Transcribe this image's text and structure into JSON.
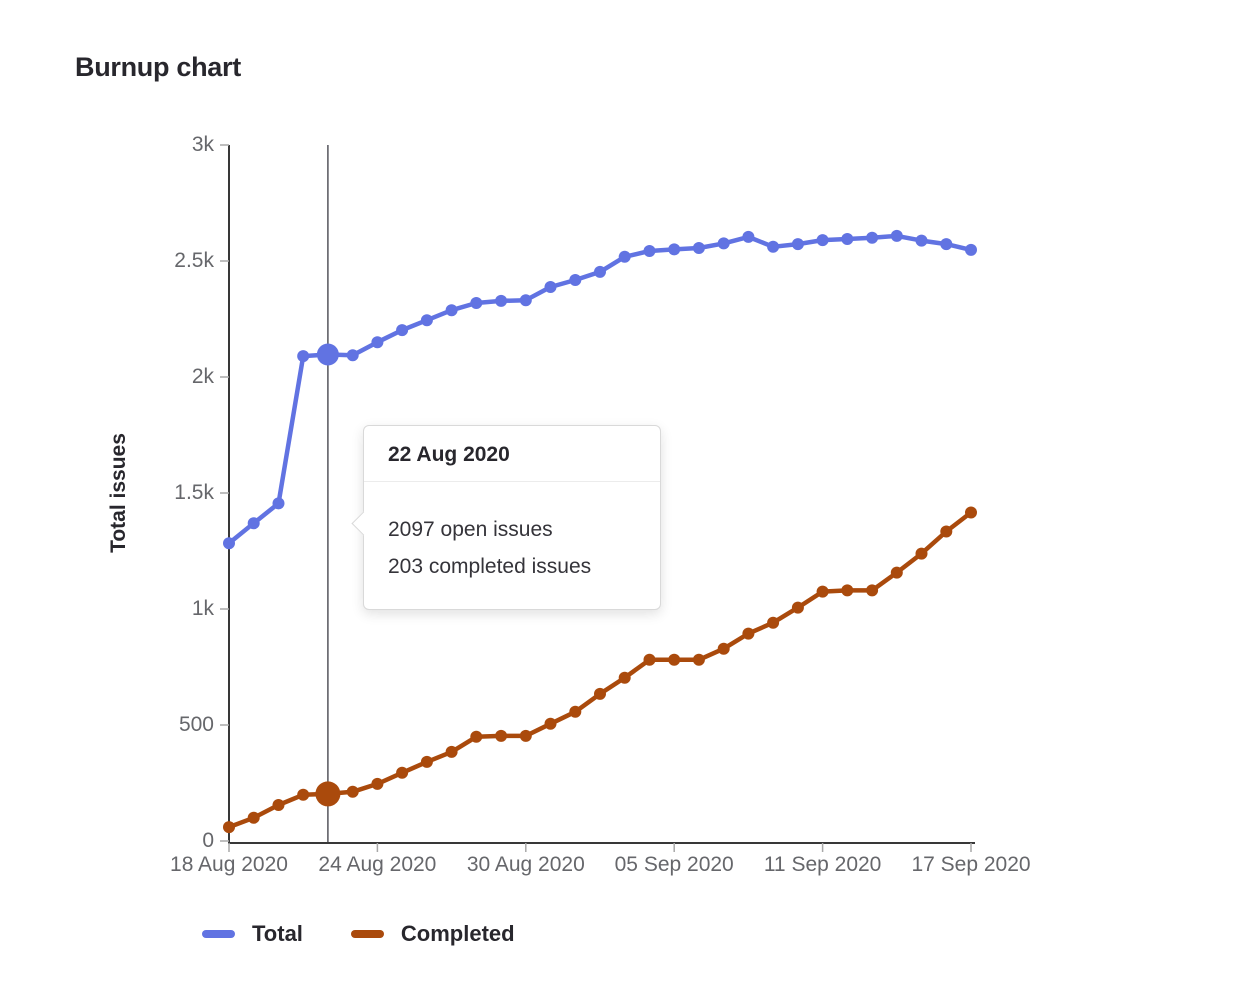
{
  "page": {
    "title": "Burnup chart"
  },
  "colors": {
    "total": "#6173e2",
    "completed": "#aa4a0c",
    "axis": "#383838",
    "tick_mark": "#a8a8a8",
    "tick_label": "#66676b",
    "text_dark": "#28272d",
    "highlight_line": "#55555c"
  },
  "tooltip": {
    "title": "22 Aug 2020",
    "lines": [
      "2097 open issues",
      "203 completed issues"
    ]
  },
  "chart_data": {
    "type": "line",
    "title": "Burnup chart",
    "xlabel": "",
    "ylabel": "Total issues",
    "ylim": [
      0,
      3000
    ],
    "grid": false,
    "legend_position": "bottom",
    "highlight_index": 4,
    "highlight_date": "22 Aug 2020",
    "x": [
      "18 Aug",
      "19 Aug",
      "20 Aug",
      "21 Aug",
      "22 Aug",
      "23 Aug",
      "24 Aug",
      "25 Aug",
      "26 Aug",
      "27 Aug",
      "28 Aug",
      "29 Aug",
      "30 Aug",
      "31 Aug",
      "01 Sep",
      "02 Sep",
      "03 Sep",
      "04 Sep",
      "05 Sep",
      "06 Sep",
      "07 Sep",
      "08 Sep",
      "09 Sep",
      "10 Sep",
      "11 Sep",
      "12 Sep",
      "13 Sep",
      "14 Sep",
      "15 Sep",
      "16 Sep",
      "17 Sep"
    ],
    "yticks": [
      {
        "label": "0",
        "value": 0
      },
      {
        "label": "500",
        "value": 500
      },
      {
        "label": "1k",
        "value": 1000
      },
      {
        "label": "1.5k",
        "value": 1500
      },
      {
        "label": "2k",
        "value": 2000
      },
      {
        "label": "2.5k",
        "value": 2500
      },
      {
        "label": "3k",
        "value": 3000
      }
    ],
    "xticks": [
      {
        "label": "18 Aug 2020",
        "index": 0
      },
      {
        "label": "24 Aug 2020",
        "index": 6
      },
      {
        "label": "30 Aug 2020",
        "index": 12
      },
      {
        "label": "05 Sep 2020",
        "index": 18
      },
      {
        "label": "11 Sep 2020",
        "index": 24
      },
      {
        "label": "17 Sep 2020",
        "index": 30
      }
    ],
    "series": [
      {
        "name": "Total",
        "key": "total",
        "color_key": "total",
        "values": [
          1283,
          1370,
          1455,
          2090,
          2097,
          2094,
          2150,
          2202,
          2245,
          2288,
          2319,
          2328,
          2331,
          2388,
          2418,
          2453,
          2518,
          2543,
          2550,
          2556,
          2576,
          2604,
          2561,
          2573,
          2590,
          2595,
          2600,
          2608,
          2588,
          2573,
          2548
        ]
      },
      {
        "name": "Completed",
        "key": "completed",
        "color_key": "completed",
        "values": [
          60,
          100,
          155,
          199,
          203,
          212,
          246,
          294,
          341,
          384,
          449,
          453,
          453,
          505,
          557,
          634,
          704,
          781,
          781,
          781,
          829,
          894,
          941,
          1006,
          1075,
          1080,
          1080,
          1157,
          1239,
          1334,
          1416
        ]
      }
    ]
  }
}
